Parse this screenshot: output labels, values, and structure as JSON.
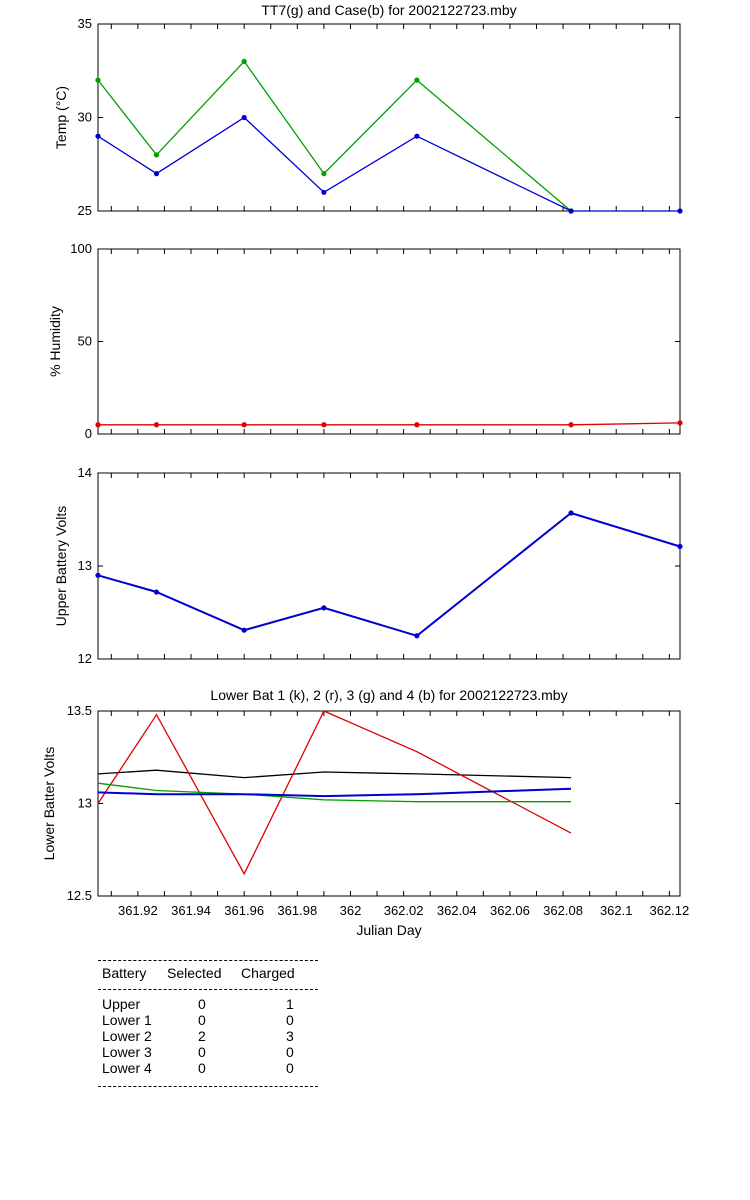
{
  "chart_data": [
    {
      "type": "line",
      "title": "TT7(g) and Case(b) for 2002122723.mby",
      "xlabel": "",
      "ylabel": "Temp  (°C)",
      "xlim": [
        361.905,
        362.124
      ],
      "ylim": [
        25,
        35
      ],
      "yticks": [
        "25",
        "30",
        "35"
      ],
      "series": [
        {
          "color": "#00a000",
          "x": [
            361.905,
            361.927,
            361.96,
            361.99,
            362.025,
            362.083
          ],
          "y": [
            32,
            28,
            33,
            27,
            32,
            25
          ]
        },
        {
          "color": "#0000d0",
          "x": [
            361.905,
            361.927,
            361.96,
            361.99,
            362.025,
            362.083,
            362.124
          ],
          "y": [
            29,
            27,
            30,
            26,
            29,
            25,
            25
          ]
        }
      ]
    },
    {
      "type": "line",
      "title": "",
      "xlabel": "",
      "ylabel": "% Humidity",
      "xlim": [
        361.905,
        362.124
      ],
      "ylim": [
        0,
        100
      ],
      "yticks": [
        "0",
        "50",
        "100"
      ],
      "series": [
        {
          "color": "#e00000",
          "x": [
            361.905,
            361.927,
            361.96,
            361.99,
            362.025,
            362.083,
            362.124
          ],
          "y": [
            5,
            5,
            5,
            5,
            5,
            5,
            6
          ]
        }
      ]
    },
    {
      "type": "line",
      "title": "",
      "xlabel": "",
      "ylabel": "Upper Battery Volts",
      "xlim": [
        361.905,
        362.124
      ],
      "ylim": [
        12,
        14
      ],
      "yticks": [
        "12",
        "13",
        "14"
      ],
      "series": [
        {
          "color": "#0000d0",
          "x": [
            361.905,
            361.927,
            361.96,
            361.99,
            362.025,
            362.083,
            362.124
          ],
          "y": [
            12.9,
            12.72,
            12.31,
            12.55,
            12.25,
            13.57,
            13.21
          ]
        }
      ]
    },
    {
      "type": "line",
      "title": "Lower Bat 1 (k), 2 (r), 3 (g) and 4 (b) for 2002122723.mby",
      "xlabel": "Julian Day",
      "ylabel": "Lower Batter Volts",
      "xlim": [
        361.905,
        362.124
      ],
      "ylim": [
        12.5,
        13.5
      ],
      "yticks": [
        "12.5",
        "13",
        "13.5"
      ],
      "xticks": [
        "361.92",
        "361.94",
        "361.96",
        "361.98",
        "362",
        "362.02",
        "362.04",
        "362.06",
        "362.08",
        "362.1",
        "362.12"
      ],
      "series": [
        {
          "color": "#000000",
          "x": [
            361.905,
            361.927,
            361.96,
            361.99,
            362.025,
            362.083
          ],
          "y": [
            13.16,
            13.18,
            13.14,
            13.17,
            13.16,
            13.14
          ]
        },
        {
          "color": "#e00000",
          "x": [
            361.905,
            361.927,
            361.96,
            361.99,
            362.025,
            362.083
          ],
          "y": [
            13.0,
            13.48,
            12.62,
            13.5,
            13.28,
            12.84
          ]
        },
        {
          "color": "#00a000",
          "x": [
            361.905,
            361.927,
            361.96,
            361.99,
            362.025,
            362.083
          ],
          "y": [
            13.11,
            13.07,
            13.05,
            13.02,
            13.01,
            13.01
          ]
        },
        {
          "color": "#0000d0",
          "x": [
            361.905,
            361.927,
            361.96,
            361.99,
            362.025,
            362.083
          ],
          "y": [
            13.06,
            13.05,
            13.05,
            13.04,
            13.05,
            13.08
          ]
        }
      ]
    }
  ],
  "table": {
    "headers": [
      "Battery",
      "Selected",
      "Charged"
    ],
    "rows": [
      [
        "Upper",
        "0",
        "1"
      ],
      [
        "Lower 1",
        "0",
        "0"
      ],
      [
        "Lower 2",
        "2",
        "3"
      ],
      [
        "Lower 3",
        "0",
        "0"
      ],
      [
        "Lower 4",
        "0",
        "0"
      ]
    ]
  }
}
